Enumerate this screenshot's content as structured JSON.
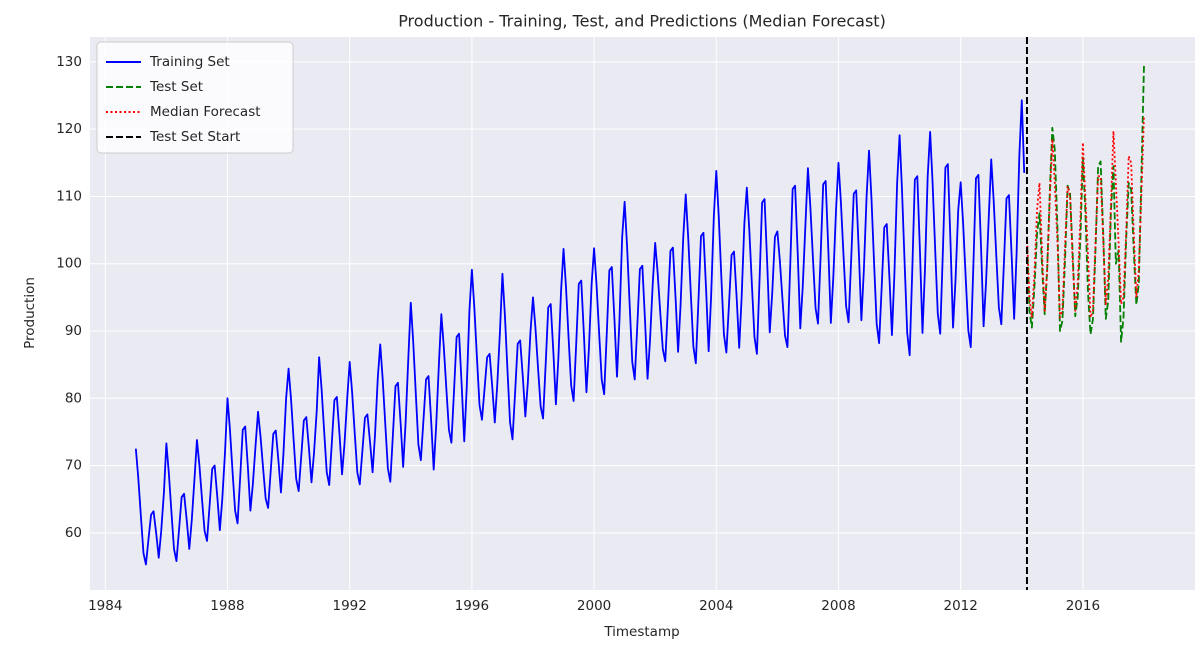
{
  "chart_data": {
    "type": "line",
    "title": "Production - Training, Test, and Predictions (Median Forecast)",
    "x_label": "Timestamp",
    "y_label": "Production",
    "xlim": [
      1983.5,
      2019.67
    ],
    "ylim": [
      51.5,
      133.7
    ],
    "xticks": [
      1984,
      1988,
      1992,
      1996,
      2000,
      2004,
      2008,
      2012,
      2016
    ],
    "yticks": [
      60,
      70,
      80,
      90,
      100,
      110,
      120,
      130
    ],
    "grid": true,
    "legend": "upper left",
    "series": [
      {
        "name": "Training Set",
        "color": "#0000ff",
        "dash": "solid",
        "x": [
          1985,
          1985.08,
          1985.17,
          1985.25,
          1985.33,
          1985.42,
          1985.5,
          1985.58,
          1985.67,
          1985.75,
          1985.83,
          1985.92,
          1986,
          1986.08,
          1986.17,
          1986.25,
          1986.33,
          1986.42,
          1986.5,
          1986.58,
          1986.67,
          1986.75,
          1986.83,
          1986.92,
          1987,
          1987.08,
          1987.17,
          1987.25,
          1987.33,
          1987.42,
          1987.5,
          1987.58,
          1987.67,
          1987.75,
          1987.83,
          1987.92,
          1988,
          1988.08,
          1988.17,
          1988.25,
          1988.33,
          1988.42,
          1988.5,
          1988.58,
          1988.67,
          1988.75,
          1988.83,
          1988.92,
          1989,
          1989.08,
          1989.17,
          1989.25,
          1989.33,
          1989.42,
          1989.5,
          1989.58,
          1989.67,
          1989.75,
          1989.83,
          1989.92,
          1990,
          1990.08,
          1990.17,
          1990.25,
          1990.33,
          1990.42,
          1990.5,
          1990.58,
          1990.67,
          1990.75,
          1990.83,
          1990.92,
          1991,
          1991.08,
          1991.17,
          1991.25,
          1991.33,
          1991.42,
          1991.5,
          1991.58,
          1991.67,
          1991.75,
          1991.83,
          1991.92,
          1992,
          1992.08,
          1992.17,
          1992.25,
          1992.33,
          1992.42,
          1992.5,
          1992.58,
          1992.67,
          1992.75,
          1992.83,
          1992.92,
          1993,
          1993.08,
          1993.17,
          1993.25,
          1993.33,
          1993.42,
          1993.5,
          1993.58,
          1993.67,
          1993.75,
          1993.83,
          1993.92,
          1994,
          1994.08,
          1994.17,
          1994.25,
          1994.33,
          1994.42,
          1994.5,
          1994.58,
          1994.67,
          1994.75,
          1994.83,
          1994.92,
          1995,
          1995.08,
          1995.17,
          1995.25,
          1995.33,
          1995.42,
          1995.5,
          1995.58,
          1995.67,
          1995.75,
          1995.83,
          1995.92,
          1996,
          1996.08,
          1996.17,
          1996.25,
          1996.33,
          1996.42,
          1996.5,
          1996.58,
          1996.67,
          1996.75,
          1996.83,
          1996.92,
          1997,
          1997.08,
          1997.17,
          1997.25,
          1997.33,
          1997.42,
          1997.5,
          1997.58,
          1997.67,
          1997.75,
          1997.83,
          1997.92,
          1998,
          1998.08,
          1998.17,
          1998.25,
          1998.33,
          1998.42,
          1998.5,
          1998.58,
          1998.67,
          1998.75,
          1998.83,
          1998.92,
          1999,
          1999.08,
          1999.17,
          1999.25,
          1999.33,
          1999.42,
          1999.5,
          1999.58,
          1999.67,
          1999.75,
          1999.83,
          1999.92,
          2000,
          2000.08,
          2000.17,
          2000.25,
          2000.33,
          2000.42,
          2000.5,
          2000.58,
          2000.67,
          2000.75,
          2000.83,
          2000.92,
          2001,
          2001.08,
          2001.17,
          2001.25,
          2001.33,
          2001.42,
          2001.5,
          2001.58,
          2001.67,
          2001.75,
          2001.83,
          2001.92,
          2002,
          2002.08,
          2002.17,
          2002.25,
          2002.33,
          2002.42,
          2002.5,
          2002.58,
          2002.67,
          2002.75,
          2002.83,
          2002.92,
          2003,
          2003.08,
          2003.17,
          2003.25,
          2003.33,
          2003.42,
          2003.5,
          2003.58,
          2003.67,
          2003.75,
          2003.83,
          2003.92,
          2004,
          2004.08,
          2004.17,
          2004.25,
          2004.33,
          2004.42,
          2004.5,
          2004.58,
          2004.67,
          2004.75,
          2004.83,
          2004.92,
          2005,
          2005.08,
          2005.17,
          2005.25,
          2005.33,
          2005.42,
          2005.5,
          2005.58,
          2005.67,
          2005.75,
          2005.83,
          2005.92,
          2006,
          2006.08,
          2006.17,
          2006.25,
          2006.33,
          2006.42,
          2006.5,
          2006.58,
          2006.67,
          2006.75,
          2006.83,
          2006.92,
          2007,
          2007.08,
          2007.17,
          2007.25,
          2007.33,
          2007.42,
          2007.5,
          2007.58,
          2007.67,
          2007.75,
          2007.83,
          2007.92,
          2008,
          2008.08,
          2008.17,
          2008.25,
          2008.33,
          2008.42,
          2008.5,
          2008.58,
          2008.67,
          2008.75,
          2008.83,
          2008.92,
          2009,
          2009.08,
          2009.17,
          2009.25,
          2009.33,
          2009.42,
          2009.5,
          2009.58,
          2009.67,
          2009.75,
          2009.83,
          2009.92,
          2010,
          2010.08,
          2010.17,
          2010.25,
          2010.33,
          2010.42,
          2010.5,
          2010.58,
          2010.67,
          2010.75,
          2010.83,
          2010.92,
          2011,
          2011.08,
          2011.17,
          2011.25,
          2011.33,
          2011.42,
          2011.5,
          2011.58,
          2011.67,
          2011.75,
          2011.83,
          2011.92,
          2012,
          2012.08,
          2012.17,
          2012.25,
          2012.33,
          2012.42,
          2012.5,
          2012.58,
          2012.67,
          2012.75,
          2012.83,
          2012.92,
          2013,
          2013.08,
          2013.17,
          2013.25,
          2013.33,
          2013.42,
          2013.5,
          2013.58,
          2013.67,
          2013.75,
          2013.83,
          2013.92,
          2014,
          2014.08
        ],
        "values": [
          72.5,
          68.2,
          62.2,
          57.0,
          55.3,
          59.3,
          62.7,
          63.2,
          59.8,
          56.3,
          60.2,
          66.0,
          73.3,
          68.9,
          62.8,
          57.6,
          55.8,
          60.8,
          65.3,
          65.8,
          61.7,
          57.6,
          61.8,
          68.0,
          73.8,
          70.1,
          64.8,
          60.3,
          58.8,
          64.4,
          69.5,
          70.0,
          65.2,
          60.4,
          65.0,
          72.0,
          80.0,
          75.4,
          68.8,
          63.3,
          61.4,
          68.6,
          75.3,
          75.8,
          69.6,
          63.3,
          67.2,
          73.0,
          78.0,
          74.4,
          69.4,
          65.1,
          63.7,
          69.5,
          74.7,
          75.2,
          70.6,
          66.0,
          71.6,
          80.0,
          84.4,
          79.9,
          73.5,
          68.0,
          66.2,
          71.7,
          76.7,
          77.2,
          72.4,
          67.5,
          71.7,
          78.0,
          86.1,
          81.4,
          74.7,
          69.0,
          67.1,
          73.7,
          79.7,
          80.2,
          74.5,
          68.7,
          73.2,
          80.0,
          85.4,
          80.9,
          74.5,
          69.0,
          67.2,
          72.4,
          77.1,
          77.6,
          73.3,
          69.0,
          74.6,
          83.0,
          88.0,
          82.9,
          75.8,
          69.6,
          67.6,
          75.0,
          81.8,
          82.3,
          76.1,
          69.8,
          76.3,
          86.0,
          94.2,
          88.4,
          80.2,
          73.1,
          70.8,
          77.1,
          82.8,
          83.3,
          76.4,
          69.4,
          75.8,
          85.0,
          92.5,
          87.7,
          81.0,
          75.3,
          73.4,
          81.5,
          89.1,
          89.6,
          81.6,
          73.6,
          81.4,
          93.0,
          99.1,
          93.5,
          85.7,
          79.0,
          76.8,
          81.7,
          86.1,
          86.6,
          81.5,
          76.4,
          81.9,
          90.0,
          98.5,
          92.4,
          83.7,
          76.4,
          73.9,
          81.3,
          88.1,
          88.6,
          83.0,
          77.3,
          82.2,
          90.0,
          95.0,
          90.5,
          84.2,
          78.8,
          77.0,
          85.5,
          93.5,
          94.0,
          86.6,
          79.1,
          85.8,
          96.0,
          102.2,
          96.6,
          88.6,
          81.9,
          79.6,
          88.6,
          97.0,
          97.5,
          89.2,
          80.9,
          87.3,
          97.0,
          102.3,
          96.9,
          89.3,
          82.8,
          80.6,
          90.1,
          99.0,
          99.5,
          91.4,
          83.2,
          91.5,
          104.0,
          109.2,
          102.6,
          93.4,
          85.4,
          82.8,
          91.3,
          99.2,
          99.7,
          91.3,
          82.9,
          88.5,
          97.0,
          103.1,
          98.7,
          92.5,
          87.3,
          85.5,
          94.0,
          101.9,
          102.4,
          94.7,
          86.9,
          93.7,
          104.0,
          110.3,
          104.0,
          95.2,
          87.7,
          85.2,
          94.9,
          104.1,
          104.6,
          95.8,
          87.0,
          95.0,
          107.0,
          113.8,
          107.1,
          97.6,
          89.5,
          86.8,
          94.3,
          101.3,
          101.8,
          94.7,
          87.5,
          95.0,
          106.0,
          111.3,
          105.1,
          96.5,
          89.1,
          86.6,
          98.1,
          109.1,
          109.6,
          99.7,
          89.8,
          95.5,
          104.0,
          104.8,
          100.5,
          94.5,
          89.3,
          87.6,
          99.6,
          111.1,
          111.6,
          101.0,
          90.4,
          96.6,
          106.0,
          114.2,
          108.4,
          100.3,
          93.4,
          91.1,
          101.7,
          111.8,
          112.3,
          101.8,
          91.2,
          97.9,
          108.0,
          115.0,
          109.1,
          100.8,
          93.7,
          91.3,
          101.1,
          110.4,
          110.9,
          101.3,
          91.6,
          99.0,
          110.0,
          116.8,
          109.7,
          99.6,
          91.1,
          88.2,
          97.1,
          105.4,
          105.9,
          97.7,
          89.4,
          98.4,
          112.0,
          119.1,
          110.9,
          99.5,
          89.7,
          86.4,
          99.7,
          112.5,
          113.0,
          101.4,
          89.7,
          99.0,
          113.0,
          119.6,
          112.1,
          101.6,
          92.6,
          89.6,
          102.2,
          114.3,
          114.8,
          102.7,
          90.5,
          97.5,
          108.0,
          112.1,
          106.0,
          97.4,
          90.1,
          87.6,
          100.4,
          112.7,
          113.2,
          102.0,
          90.7,
          97.2,
          107.0,
          115.5,
          109.4,
          100.8,
          93.5,
          91.0,
          100.6,
          109.7,
          110.2,
          101.0,
          91.8,
          101.5,
          116.0,
          124.3,
          113.5
        ]
      },
      {
        "name": "Test Set",
        "color": "#008000",
        "dash": "dashed",
        "x": [
          2014.17,
          2014.25,
          2014.33,
          2014.42,
          2014.5,
          2014.58,
          2014.67,
          2014.75,
          2014.83,
          2014.92,
          2015,
          2015.08,
          2015.17,
          2015.25,
          2015.33,
          2015.42,
          2015.5,
          2015.58,
          2015.67,
          2015.75,
          2015.83,
          2015.92,
          2016,
          2016.08,
          2016.17,
          2016.25,
          2016.33,
          2016.42,
          2016.5,
          2016.58,
          2016.67,
          2016.75,
          2016.83,
          2016.92,
          2017,
          2017.08,
          2017.17,
          2017.25,
          2017.33,
          2017.42,
          2017.5,
          2017.58,
          2017.67,
          2017.75,
          2017.83,
          2017.92,
          2018
        ],
        "values": [
          104.0,
          93.0,
          90.5,
          97.0,
          104.5,
          107.5,
          99.0,
          92.5,
          99.0,
          111.0,
          120.2,
          117.0,
          105.0,
          90.0,
          91.5,
          101.0,
          111.6,
          110.5,
          101.0,
          92.2,
          95.0,
          104.0,
          115.8,
          108.0,
          95.5,
          89.5,
          91.8,
          103.0,
          114.5,
          115.2,
          104.0,
          91.8,
          94.5,
          108.0,
          114.5,
          100.0,
          102.0,
          88.4,
          92.0,
          104.0,
          112.0,
          111.0,
          101.5,
          93.9,
          97.0,
          114.0,
          129.4
        ]
      },
      {
        "name": "Median Forecast",
        "color": "#ff0000",
        "dash": "dotted",
        "x": [
          2014.17,
          2014.25,
          2014.33,
          2014.42,
          2014.5,
          2014.58,
          2014.67,
          2014.75,
          2014.83,
          2014.92,
          2015,
          2015.08,
          2015.17,
          2015.25,
          2015.33,
          2015.42,
          2015.5,
          2015.58,
          2015.67,
          2015.75,
          2015.83,
          2015.92,
          2016,
          2016.08,
          2016.17,
          2016.25,
          2016.33,
          2016.42,
          2016.5,
          2016.58,
          2016.67,
          2016.75,
          2016.83,
          2016.92,
          2017,
          2017.08,
          2017.17,
          2017.25,
          2017.33,
          2017.42,
          2017.5,
          2017.58,
          2017.67,
          2017.75,
          2017.83,
          2017.92,
          2018
        ],
        "values": [
          104.0,
          95.0,
          92.0,
          99.0,
          108.0,
          112.0,
          101.0,
          93.0,
          99.0,
          110.0,
          118.5,
          112.0,
          103.0,
          92.0,
          93.0,
          103.0,
          111.5,
          110.0,
          100.0,
          93.0,
          97.0,
          107.0,
          118.0,
          110.0,
          101.0,
          92.0,
          93.0,
          104.0,
          113.0,
          113.0,
          103.0,
          94.0,
          98.0,
          109.0,
          119.7,
          112.0,
          103.0,
          94.0,
          95.0,
          105.0,
          116.0,
          115.0,
          104.0,
          95.0,
          99.0,
          111.0,
          122.0
        ]
      }
    ],
    "vlines": [
      {
        "name": "Test Set Start",
        "x": 2014.17,
        "color": "#000000",
        "dash": "dashed"
      }
    ]
  }
}
